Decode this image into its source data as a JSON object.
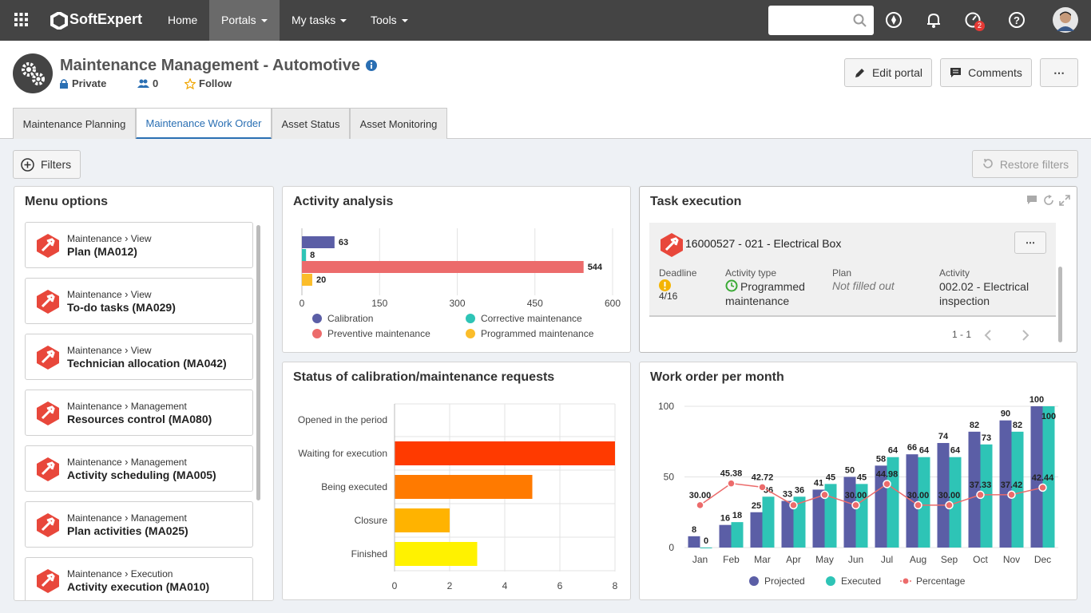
{
  "topbar": {
    "brand": "SoftExpert",
    "nav": [
      {
        "label": "Home"
      },
      {
        "label": "Portals"
      },
      {
        "label": "My tasks"
      },
      {
        "label": "Tools"
      }
    ],
    "search_placeholder": "",
    "notification_badge": "2"
  },
  "header": {
    "title": "Maintenance Management - Automotive",
    "privacy": "Private",
    "members_count": "0",
    "follow": "Follow",
    "edit_portal": "Edit portal",
    "comments": "Comments",
    "more": "⋯"
  },
  "tabs": [
    {
      "label": "Maintenance Planning"
    },
    {
      "label": "Maintenance Work Order"
    },
    {
      "label": "Asset Status"
    },
    {
      "label": "Asset Monitoring"
    }
  ],
  "toolbar": {
    "filters": "Filters",
    "restore": "Restore filters"
  },
  "menu_options": {
    "title": "Menu options",
    "items": [
      {
        "path1": "Maintenance",
        "path2": "View",
        "title": "Plan (MA012)"
      },
      {
        "path1": "Maintenance",
        "path2": "View",
        "title": "To-do tasks (MA029)"
      },
      {
        "path1": "Maintenance",
        "path2": "View",
        "title": "Technician allocation (MA042)"
      },
      {
        "path1": "Maintenance",
        "path2": "Management",
        "title": "Resources control (MA080)"
      },
      {
        "path1": "Maintenance",
        "path2": "Management",
        "title": "Activity scheduling (MA005)"
      },
      {
        "path1": "Maintenance",
        "path2": "Management",
        "title": "Plan activities (MA025)"
      },
      {
        "path1": "Maintenance",
        "path2": "Execution",
        "title": "Activity execution (MA010)"
      }
    ]
  },
  "activity_analysis": {
    "title": "Activity analysis"
  },
  "task_execution": {
    "title": "Task execution",
    "task_title": "16000527 - 021 - Electrical Box",
    "deadline_label": "Deadline",
    "deadline_value": "4/16",
    "activity_type_label": "Activity type",
    "activity_type_value": "Programmed maintenance",
    "plan_label": "Plan",
    "plan_value": "Not filled out",
    "activity_label": "Activity",
    "activity_value": "002.02 - Electrical inspection",
    "pager": "1 - 1"
  },
  "status_requests": {
    "title": "Status of calibration/maintenance requests"
  },
  "work_order": {
    "title": "Work order per month"
  },
  "chart_data": [
    {
      "type": "bar",
      "orientation": "horizontal",
      "categories": [
        "Calibration",
        "Corrective maintenance",
        "Preventive maintenance",
        "Programmed maintenance"
      ],
      "values": [
        63,
        8,
        544,
        20
      ],
      "colors": [
        "#5b5ea6",
        "#2ec4b6",
        "#ec6b6b",
        "#fbbd2a"
      ],
      "xticks": [
        "0",
        "150",
        "300",
        "450",
        "600"
      ],
      "xlim": [
        0,
        600
      ],
      "legend": "bottom",
      "grid": true
    },
    {
      "type": "bar",
      "orientation": "horizontal",
      "categories": [
        "Opened in the period",
        "Waiting for execution",
        "Being executed",
        "Closure",
        "Finished"
      ],
      "values": [
        0,
        8,
        5,
        2,
        3
      ],
      "colors": [
        "#ffffff",
        "#ff3a00",
        "#ff7a00",
        "#ffb300",
        "#fff200"
      ],
      "xticks": [
        "0",
        "2",
        "4",
        "6",
        "8"
      ],
      "xlim": [
        0,
        8
      ],
      "grid": true
    },
    {
      "type": "bar",
      "categories": [
        "Jan",
        "Feb",
        "Mar",
        "Apr",
        "May",
        "Jun",
        "Jul",
        "Aug",
        "Sep",
        "Oct",
        "Nov",
        "Dec"
      ],
      "series": [
        {
          "name": "Projected",
          "values": [
            8,
            16,
            25,
            33,
            41,
            50,
            58,
            66,
            74,
            82,
            90,
            100
          ],
          "color": "#5b5ea6"
        },
        {
          "name": "Executed",
          "values": [
            0,
            18,
            36,
            36,
            45,
            45,
            64,
            64,
            64,
            73,
            82,
            100
          ],
          "color": "#2ec4b6"
        },
        {
          "name": "Percentage",
          "type": "line",
          "values": [
            30.0,
            45.38,
            42.72,
            30.0,
            37.33,
            30.0,
            44.98,
            30.0,
            30.0,
            37.33,
            37.42,
            42.44
          ],
          "labels": [
            "30.00",
            "45.38",
            "42.72",
            "",
            "",
            "30.00",
            "44.98",
            "30.00",
            "30.00",
            "37.33",
            "37.42",
            "42.44"
          ],
          "color": "#ec6b6b"
        }
      ],
      "yticks": [
        "0",
        "50",
        "100"
      ],
      "ylim": [
        0,
        100
      ],
      "legend": "bottom",
      "grid": true
    }
  ]
}
